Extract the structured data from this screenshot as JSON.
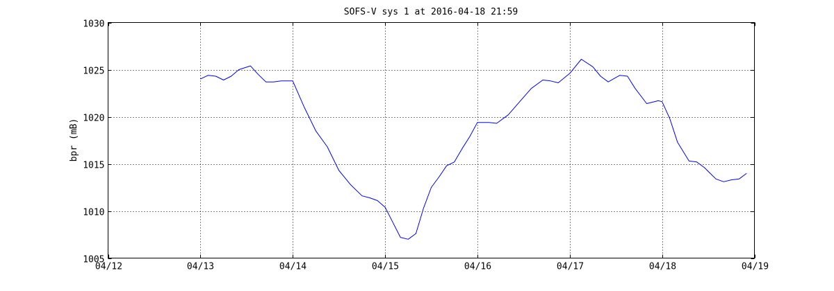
{
  "chart_data": {
    "type": "line",
    "title": "SOFS-V sys 1 at 2016-04-18 21:59",
    "xlabel": "",
    "ylabel": "bpr (mB)",
    "xlim": [
      "2016-04-12",
      "2016-04-19"
    ],
    "ylim": [
      1005,
      1030
    ],
    "x_ticks": [
      "04/12",
      "04/13",
      "04/14",
      "04/15",
      "04/16",
      "04/17",
      "04/18",
      "04/19"
    ],
    "y_ticks": [
      1005,
      1010,
      1015,
      1020,
      1025,
      1030
    ],
    "grid": true,
    "line_color": "#0000ff",
    "series": [
      {
        "name": "",
        "x": [
          "2016-04-12 23:59",
          "2016-04-13 02:00",
          "2016-04-13 04:00",
          "2016-04-13 06:00",
          "2016-04-13 08:00",
          "2016-04-13 10:00",
          "2016-04-13 13:00",
          "2016-04-13 15:00",
          "2016-04-13 17:00",
          "2016-04-13 19:00",
          "2016-04-13 21:00",
          "2016-04-14 00:00",
          "2016-04-14 03:00",
          "2016-04-14 06:00",
          "2016-04-14 09:00",
          "2016-04-14 12:00",
          "2016-04-14 15:00",
          "2016-04-14 18:00",
          "2016-04-14 20:00",
          "2016-04-14 22:00",
          "2016-04-15 00:00",
          "2016-04-15 02:00",
          "2016-04-15 04:00",
          "2016-04-15 06:00",
          "2016-04-15 08:00",
          "2016-04-15 10:00",
          "2016-04-15 12:00",
          "2016-04-15 14:00",
          "2016-04-15 16:00",
          "2016-04-15 18:00",
          "2016-04-15 20:00",
          "2016-04-15 22:00",
          "2016-04-16 00:00",
          "2016-04-16 03:00",
          "2016-04-16 05:00",
          "2016-04-16 08:00",
          "2016-04-16 11:00",
          "2016-04-16 14:00",
          "2016-04-16 17:00",
          "2016-04-16 19:00",
          "2016-04-16 21:00",
          "2016-04-17 00:00",
          "2016-04-17 03:00",
          "2016-04-17 06:00",
          "2016-04-17 08:00",
          "2016-04-17 10:00",
          "2016-04-17 13:00",
          "2016-04-17 15:00",
          "2016-04-17 17:00",
          "2016-04-17 20:00",
          "2016-04-17 23:00",
          "2016-04-18 00:00",
          "2016-04-18 02:00",
          "2016-04-18 04:00",
          "2016-04-18 07:00",
          "2016-04-18 09:00",
          "2016-04-18 11:00",
          "2016-04-18 14:00",
          "2016-04-18 16:00",
          "2016-04-18 18:00",
          "2016-04-18 20:00",
          "2016-04-18 21:59"
        ],
        "y": [
          1024.0,
          1024.4,
          1024.3,
          1023.9,
          1024.3,
          1025.0,
          1025.4,
          1024.5,
          1023.7,
          1023.7,
          1023.8,
          1023.8,
          1021.0,
          1018.5,
          1016.8,
          1014.3,
          1012.8,
          1011.6,
          1011.4,
          1011.1,
          1010.4,
          1008.8,
          1007.2,
          1007.0,
          1007.6,
          1010.3,
          1012.5,
          1013.6,
          1014.8,
          1015.2,
          1016.6,
          1017.9,
          1019.4,
          1019.4,
          1019.3,
          1020.2,
          1021.6,
          1023.0,
          1023.9,
          1023.8,
          1023.6,
          1024.6,
          1026.1,
          1025.3,
          1024.3,
          1023.7,
          1024.4,
          1024.3,
          1023.0,
          1021.4,
          1021.7,
          1021.6,
          1019.8,
          1017.3,
          1015.3,
          1015.2,
          1014.6,
          1013.4,
          1013.1,
          1013.3,
          1013.4,
          1014.0
        ]
      }
    ]
  }
}
